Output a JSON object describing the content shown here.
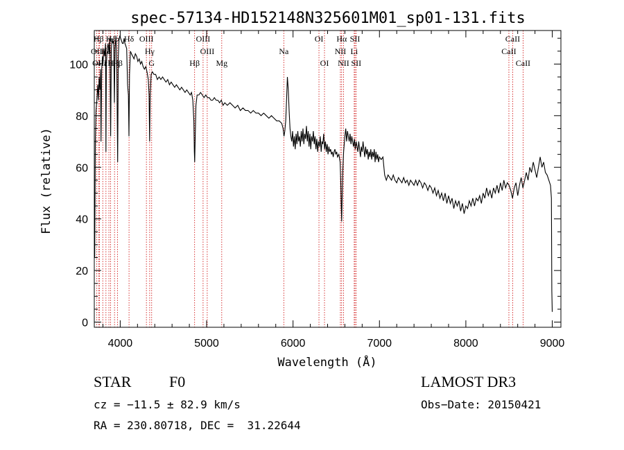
{
  "chart_data": {
    "type": "line",
    "title": "spec-57134-HD152148N325601M01_sp01-131.fits",
    "xlabel": "Wavelength (Å)",
    "ylabel": "Flux (relative)",
    "xlim": [
      3700,
      9100
    ],
    "ylim": [
      -2,
      113
    ],
    "xticks": [
      4000,
      5000,
      6000,
      7000,
      8000,
      9000
    ],
    "yticks": [
      0,
      20,
      40,
      60,
      80,
      100
    ],
    "grid": false,
    "spectrum": [
      [
        3700,
        35
      ],
      [
        3705,
        25
      ],
      [
        3712,
        70
      ],
      [
        3720,
        82
      ],
      [
        3730,
        86
      ],
      [
        3740,
        92
      ],
      [
        3748,
        86
      ],
      [
        3756,
        95
      ],
      [
        3764,
        90
      ],
      [
        3772,
        98
      ],
      [
        3778,
        70
      ],
      [
        3786,
        98
      ],
      [
        3795,
        103
      ],
      [
        3800,
        100
      ],
      [
        3810,
        106
      ],
      [
        3820,
        103
      ],
      [
        3830,
        108
      ],
      [
        3835,
        66
      ],
      [
        3840,
        100
      ],
      [
        3850,
        106
      ],
      [
        3860,
        108
      ],
      [
        3870,
        104
      ],
      [
        3880,
        110
      ],
      [
        3889,
        72
      ],
      [
        3897,
        106
      ],
      [
        3905,
        110
      ],
      [
        3915,
        108
      ],
      [
        3925,
        109
      ],
      [
        3933,
        85
      ],
      [
        3940,
        106
      ],
      [
        3950,
        111
      ],
      [
        3961,
        98
      ],
      [
        3970,
        62
      ],
      [
        3978,
        102
      ],
      [
        3985,
        109
      ],
      [
        3995,
        111
      ],
      [
        4005,
        110
      ],
      [
        4015,
        109
      ],
      [
        4025,
        108
      ],
      [
        4035,
        108
      ],
      [
        4045,
        110
      ],
      [
        4055,
        108
      ],
      [
        4065,
        107
      ],
      [
        4075,
        106
      ],
      [
        4085,
        92
      ],
      [
        4095,
        88
      ],
      [
        4101,
        72
      ],
      [
        4108,
        96
      ],
      [
        4118,
        105
      ],
      [
        4130,
        104
      ],
      [
        4145,
        103
      ],
      [
        4160,
        102
      ],
      [
        4175,
        104
      ],
      [
        4190,
        103
      ],
      [
        4205,
        101
      ],
      [
        4220,
        102
      ],
      [
        4235,
        100
      ],
      [
        4250,
        101
      ],
      [
        4265,
        99
      ],
      [
        4280,
        98
      ],
      [
        4295,
        99
      ],
      [
        4310,
        97
      ],
      [
        4325,
        94
      ],
      [
        4334,
        88
      ],
      [
        4340,
        70
      ],
      [
        4347,
        88
      ],
      [
        4358,
        96
      ],
      [
        4372,
        97
      ],
      [
        4390,
        96
      ],
      [
        4410,
        96
      ],
      [
        4430,
        94
      ],
      [
        4450,
        95
      ],
      [
        4470,
        94
      ],
      [
        4490,
        95
      ],
      [
        4510,
        94
      ],
      [
        4530,
        93
      ],
      [
        4550,
        94
      ],
      [
        4570,
        92
      ],
      [
        4590,
        93
      ],
      [
        4610,
        92
      ],
      [
        4630,
        91
      ],
      [
        4650,
        92
      ],
      [
        4670,
        91
      ],
      [
        4690,
        90
      ],
      [
        4710,
        91
      ],
      [
        4730,
        90
      ],
      [
        4750,
        89
      ],
      [
        4770,
        90
      ],
      [
        4790,
        89
      ],
      [
        4810,
        88
      ],
      [
        4825,
        89
      ],
      [
        4840,
        86
      ],
      [
        4852,
        78
      ],
      [
        4858,
        66
      ],
      [
        4862,
        62
      ],
      [
        4868,
        72
      ],
      [
        4876,
        84
      ],
      [
        4890,
        88
      ],
      [
        4910,
        88
      ],
      [
        4930,
        89
      ],
      [
        4950,
        88
      ],
      [
        4970,
        87
      ],
      [
        4990,
        88
      ],
      [
        5010,
        87
      ],
      [
        5030,
        87
      ],
      [
        5050,
        86
      ],
      [
        5070,
        86
      ],
      [
        5090,
        87
      ],
      [
        5110,
        86
      ],
      [
        5130,
        86
      ],
      [
        5150,
        85
      ],
      [
        5170,
        86
      ],
      [
        5190,
        84
      ],
      [
        5210,
        85
      ],
      [
        5240,
        84
      ],
      [
        5270,
        85
      ],
      [
        5300,
        84
      ],
      [
        5330,
        83
      ],
      [
        5360,
        84
      ],
      [
        5390,
        82
      ],
      [
        5420,
        83
      ],
      [
        5450,
        82
      ],
      [
        5480,
        82
      ],
      [
        5510,
        81
      ],
      [
        5540,
        82
      ],
      [
        5570,
        81
      ],
      [
        5600,
        81
      ],
      [
        5630,
        80
      ],
      [
        5660,
        81
      ],
      [
        5690,
        80
      ],
      [
        5720,
        79
      ],
      [
        5750,
        80
      ],
      [
        5780,
        79
      ],
      [
        5810,
        78
      ],
      [
        5840,
        78
      ],
      [
        5870,
        77
      ],
      [
        5885,
        75
      ],
      [
        5895,
        72
      ],
      [
        5905,
        74
      ],
      [
        5915,
        78
      ],
      [
        5925,
        86
      ],
      [
        5935,
        95
      ],
      [
        5945,
        90
      ],
      [
        5955,
        82
      ],
      [
        5965,
        75
      ],
      [
        5975,
        72
      ],
      [
        5985,
        70
      ],
      [
        5995,
        74
      ],
      [
        6005,
        68
      ],
      [
        6015,
        72
      ],
      [
        6025,
        67
      ],
      [
        6035,
        73
      ],
      [
        6045,
        69
      ],
      [
        6055,
        74
      ],
      [
        6065,
        70
      ],
      [
        6075,
        72
      ],
      [
        6085,
        68
      ],
      [
        6095,
        74
      ],
      [
        6105,
        70
      ],
      [
        6115,
        75
      ],
      [
        6125,
        69
      ],
      [
        6135,
        73
      ],
      [
        6145,
        71
      ],
      [
        6155,
        76
      ],
      [
        6165,
        70
      ],
      [
        6175,
        74
      ],
      [
        6185,
        68
      ],
      [
        6195,
        73
      ],
      [
        6205,
        67
      ],
      [
        6215,
        72
      ],
      [
        6225,
        70
      ],
      [
        6235,
        74
      ],
      [
        6245,
        69
      ],
      [
        6255,
        72
      ],
      [
        6265,
        67
      ],
      [
        6275,
        71
      ],
      [
        6285,
        66
      ],
      [
        6295,
        70
      ],
      [
        6305,
        68
      ],
      [
        6315,
        72
      ],
      [
        6325,
        66
      ],
      [
        6335,
        70
      ],
      [
        6345,
        69
      ],
      [
        6355,
        73
      ],
      [
        6365,
        67
      ],
      [
        6375,
        70
      ],
      [
        6385,
        66
      ],
      [
        6395,
        69
      ],
      [
        6405,
        65
      ],
      [
        6415,
        68
      ],
      [
        6425,
        66
      ],
      [
        6435,
        67
      ],
      [
        6445,
        65
      ],
      [
        6455,
        66
      ],
      [
        6465,
        64
      ],
      [
        6475,
        66
      ],
      [
        6485,
        67
      ],
      [
        6495,
        65
      ],
      [
        6505,
        66
      ],
      [
        6515,
        64
      ],
      [
        6530,
        65
      ],
      [
        6545,
        62
      ],
      [
        6552,
        55
      ],
      [
        6558,
        45
      ],
      [
        6563,
        39
      ],
      [
        6568,
        47
      ],
      [
        6575,
        58
      ],
      [
        6585,
        66
      ],
      [
        6600,
        72
      ],
      [
        6610,
        75
      ],
      [
        6620,
        70
      ],
      [
        6630,
        74
      ],
      [
        6640,
        72
      ],
      [
        6650,
        70
      ],
      [
        6660,
        73
      ],
      [
        6670,
        69
      ],
      [
        6680,
        72
      ],
      [
        6690,
        70
      ],
      [
        6700,
        68
      ],
      [
        6710,
        71
      ],
      [
        6720,
        67
      ],
      [
        6730,
        70
      ],
      [
        6740,
        68
      ],
      [
        6750,
        66
      ],
      [
        6760,
        70
      ],
      [
        6770,
        67
      ],
      [
        6780,
        64
      ],
      [
        6790,
        68
      ],
      [
        6800,
        66
      ],
      [
        6810,
        70
      ],
      [
        6820,
        67
      ],
      [
        6830,
        64
      ],
      [
        6840,
        68
      ],
      [
        6850,
        65
      ],
      [
        6860,
        67
      ],
      [
        6870,
        63
      ],
      [
        6880,
        66
      ],
      [
        6890,
        64
      ],
      [
        6900,
        67
      ],
      [
        6910,
        63
      ],
      [
        6920,
        66
      ],
      [
        6930,
        64
      ],
      [
        6940,
        67
      ],
      [
        6950,
        62
      ],
      [
        6960,
        66
      ],
      [
        6970,
        63
      ],
      [
        6980,
        65
      ],
      [
        6990,
        62
      ],
      [
        7000,
        64
      ],
      [
        7020,
        63
      ],
      [
        7040,
        64
      ],
      [
        7060,
        57
      ],
      [
        7080,
        55
      ],
      [
        7100,
        57
      ],
      [
        7120,
        56
      ],
      [
        7140,
        55
      ],
      [
        7160,
        57
      ],
      [
        7180,
        55
      ],
      [
        7200,
        54
      ],
      [
        7220,
        56
      ],
      [
        7240,
        55
      ],
      [
        7260,
        54
      ],
      [
        7280,
        56
      ],
      [
        7300,
        54
      ],
      [
        7320,
        55
      ],
      [
        7340,
        53
      ],
      [
        7360,
        55
      ],
      [
        7380,
        54
      ],
      [
        7400,
        53
      ],
      [
        7420,
        55
      ],
      [
        7440,
        53
      ],
      [
        7460,
        55
      ],
      [
        7480,
        54
      ],
      [
        7500,
        52
      ],
      [
        7520,
        54
      ],
      [
        7540,
        53
      ],
      [
        7560,
        51
      ],
      [
        7580,
        53
      ],
      [
        7600,
        52
      ],
      [
        7620,
        50
      ],
      [
        7640,
        52
      ],
      [
        7660,
        49
      ],
      [
        7680,
        51
      ],
      [
        7700,
        48
      ],
      [
        7720,
        50
      ],
      [
        7740,
        47
      ],
      [
        7760,
        50
      ],
      [
        7780,
        46
      ],
      [
        7800,
        49
      ],
      [
        7820,
        46
      ],
      [
        7840,
        48
      ],
      [
        7860,
        44
      ],
      [
        7880,
        47
      ],
      [
        7900,
        45
      ],
      [
        7920,
        47
      ],
      [
        7940,
        43
      ],
      [
        7960,
        46
      ],
      [
        7980,
        42
      ],
      [
        8000,
        45
      ],
      [
        8020,
        44
      ],
      [
        8040,
        47
      ],
      [
        8060,
        45
      ],
      [
        8080,
        48
      ],
      [
        8100,
        45
      ],
      [
        8120,
        48
      ],
      [
        8140,
        47
      ],
      [
        8160,
        49
      ],
      [
        8180,
        46
      ],
      [
        8200,
        50
      ],
      [
        8220,
        48
      ],
      [
        8240,
        52
      ],
      [
        8260,
        49
      ],
      [
        8280,
        51
      ],
      [
        8300,
        48
      ],
      [
        8320,
        52
      ],
      [
        8340,
        50
      ],
      [
        8360,
        53
      ],
      [
        8380,
        50
      ],
      [
        8400,
        54
      ],
      [
        8420,
        51
      ],
      [
        8440,
        55
      ],
      [
        8460,
        52
      ],
      [
        8480,
        54
      ],
      [
        8500,
        53
      ],
      [
        8520,
        51
      ],
      [
        8540,
        48
      ],
      [
        8560,
        52
      ],
      [
        8580,
        54
      ],
      [
        8600,
        49
      ],
      [
        8620,
        53
      ],
      [
        8640,
        56
      ],
      [
        8660,
        52
      ],
      [
        8680,
        55
      ],
      [
        8700,
        58
      ],
      [
        8720,
        55
      ],
      [
        8740,
        60
      ],
      [
        8760,
        58
      ],
      [
        8780,
        62
      ],
      [
        8800,
        59
      ],
      [
        8820,
        56
      ],
      [
        8840,
        60
      ],
      [
        8860,
        64
      ],
      [
        8880,
        60
      ],
      [
        8900,
        62
      ],
      [
        8920,
        58
      ],
      [
        8940,
        57
      ],
      [
        8960,
        55
      ],
      [
        8980,
        53
      ],
      [
        8990,
        48
      ],
      [
        8995,
        12
      ],
      [
        9000,
        4
      ]
    ],
    "lines": [
      {
        "label": "Hβ",
        "wavelength": 3750,
        "row": 0
      },
      {
        "label": "OII",
        "wavelength": 3727,
        "row": 1
      },
      {
        "label": "OIII",
        "wavelength": 3760,
        "row": 2
      },
      {
        "label": "Hε",
        "wavelength": 3798,
        "row": 2
      },
      {
        "label": "Hδ",
        "wavelength": 3835,
        "row": 1
      },
      {
        "label": "K",
        "wavelength": 3869,
        "row": 0
      },
      {
        "label": "H",
        "wavelength": 3889,
        "row": 2
      },
      {
        "label": "Hα",
        "wavelength": 3934,
        "row": 0
      },
      {
        "label": "Hβ",
        "wavelength": 3969,
        "row": 2
      },
      {
        "label": "Hδ",
        "wavelength": 4102,
        "row": 0
      },
      {
        "label": "OIII",
        "wavelength": 4303,
        "row": 0
      },
      {
        "label": "Hγ",
        "wavelength": 4341,
        "row": 1
      },
      {
        "label": "G",
        "wavelength": 4364,
        "row": 2
      },
      {
        "label": "Hβ",
        "wavelength": 4861,
        "row": 2
      },
      {
        "label": "OIII",
        "wavelength": 4959,
        "row": 0
      },
      {
        "label": "OIII",
        "wavelength": 5007,
        "row": 1
      },
      {
        "label": "Mg",
        "wavelength": 5175,
        "row": 2
      },
      {
        "label": "Na",
        "wavelength": 5893,
        "row": 1
      },
      {
        "label": "OI",
        "wavelength": 6300,
        "row": 0
      },
      {
        "label": "OI",
        "wavelength": 6364,
        "row": 2
      },
      {
        "label": "Hα",
        "wavelength": 6563,
        "row": 0
      },
      {
        "label": "NII",
        "wavelength": 6548,
        "row": 1
      },
      {
        "label": "NII",
        "wavelength": 6584,
        "row": 2
      },
      {
        "label": "SII",
        "wavelength": 6717,
        "row": 0
      },
      {
        "label": "Li",
        "wavelength": 6708,
        "row": 1
      },
      {
        "label": "SII",
        "wavelength": 6731,
        "row": 2
      },
      {
        "label": "CaII",
        "wavelength": 8542,
        "row": 0
      },
      {
        "label": "CaII",
        "wavelength": 8498,
        "row": 1
      },
      {
        "label": "CaII",
        "wavelength": 8662,
        "row": 2
      }
    ]
  },
  "info": {
    "class": "STAR",
    "subclass": "F0",
    "survey": "LAMOST DR3",
    "cz": "cz = −11.5 ± 82.9 km/s",
    "obs_date": "Obs−Date: 20150421",
    "coords": "RA = 230.80718, DEC =  31.22644"
  },
  "colors": {
    "line": "#000000",
    "marker": "#cc0000"
  }
}
